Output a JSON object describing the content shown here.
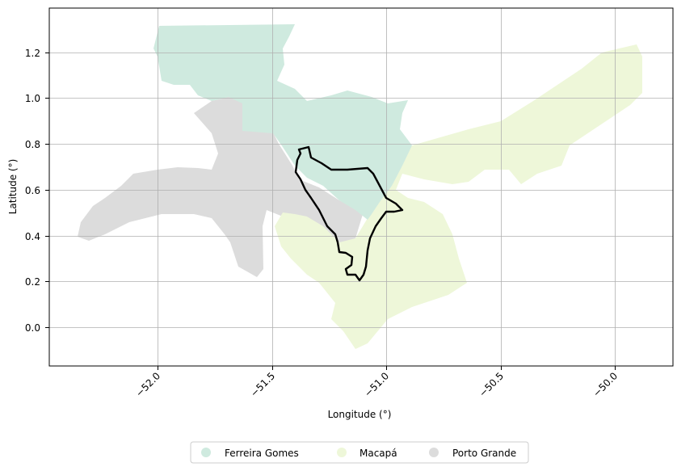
{
  "chart_data": {
    "type": "map",
    "xlabel": "Longitude (°)",
    "ylabel": "Latitude (°)",
    "xlim": [
      -52.48,
      -49.85
    ],
    "ylim": [
      -0.17,
      1.39
    ],
    "xticks": [
      -52.0,
      -51.5,
      -51.0,
      -50.5,
      -50.0
    ],
    "xtick_labels": [
      "−52.0",
      "−51.5",
      "−51.0",
      "−50.5",
      "−50.0"
    ],
    "yticks": [
      0.0,
      0.2,
      0.4,
      0.6,
      0.8,
      1.0,
      1.2
    ],
    "ytick_labels": [
      "0.0",
      "0.2",
      "0.4",
      "0.6",
      "0.8",
      "1.0",
      "1.2"
    ],
    "grid": true,
    "legend_position": "bottom-center",
    "regions": [
      {
        "name": "Ferreira Gomes",
        "color": "#cfeadf"
      },
      {
        "name": "Macapá",
        "color": "#eef7d9"
      },
      {
        "name": "Porto Grande",
        "color": "#dcdcdc"
      }
    ],
    "highlight_outline": {
      "color": "#000000",
      "description": "study area boundary"
    }
  }
}
